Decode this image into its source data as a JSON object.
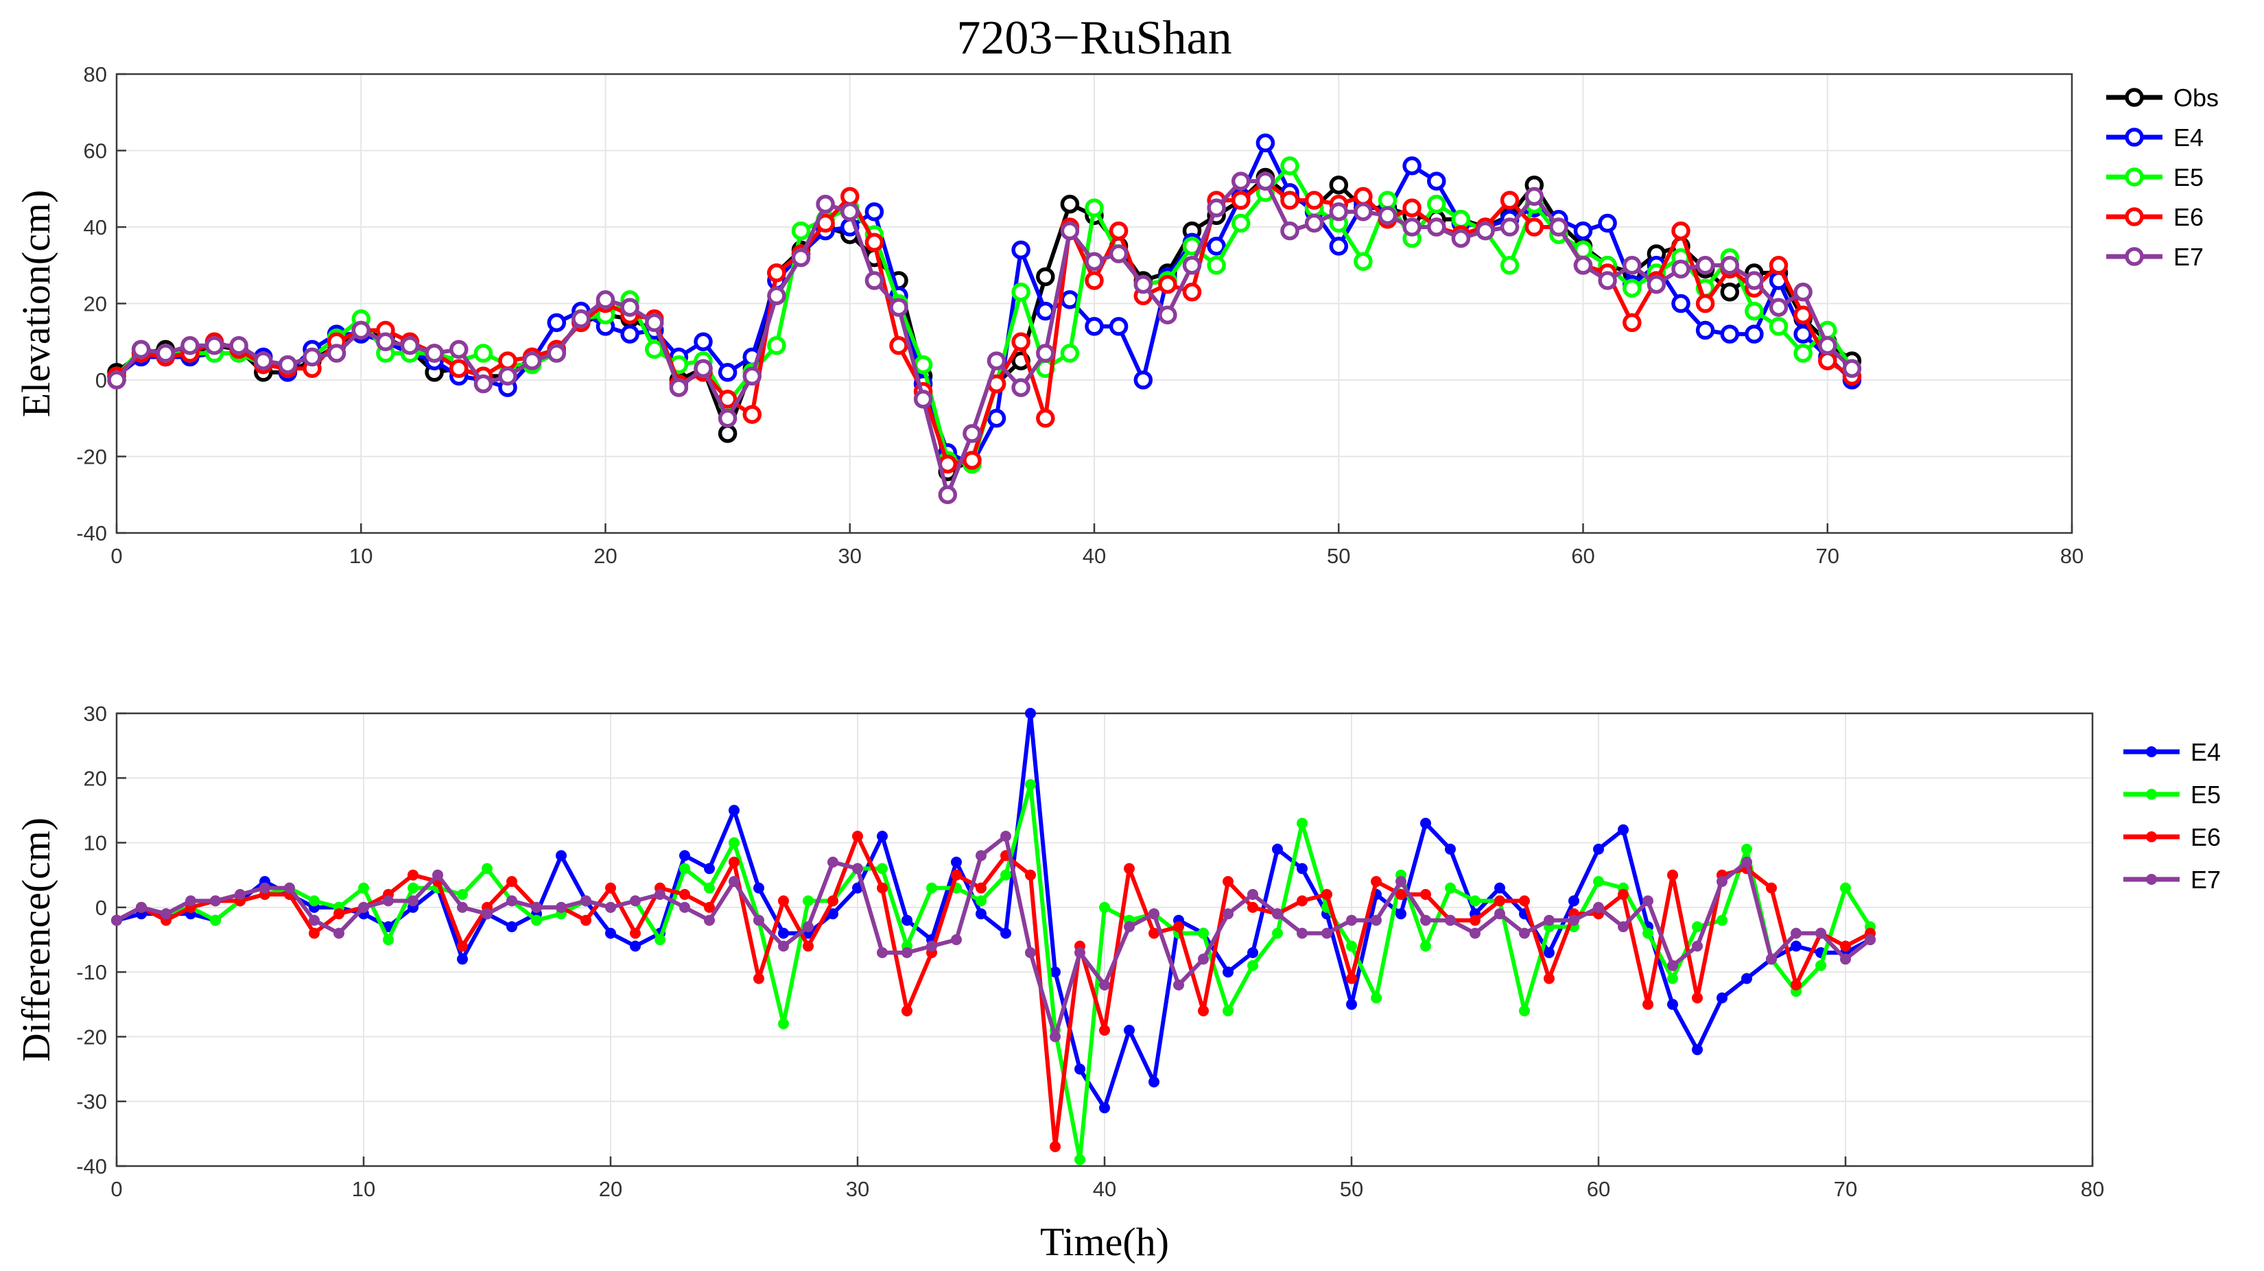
{
  "figure": {
    "title": "7203−RuShan",
    "xlabel": "Time(h)"
  },
  "chart_data": [
    {
      "type": "line",
      "ylabel": "Elevation(cm)",
      "xlim": [
        0,
        80
      ],
      "ylim": [
        -40,
        80
      ],
      "xticks": [
        0,
        10,
        20,
        30,
        40,
        50,
        60,
        70,
        80
      ],
      "yticks": [
        -40,
        -20,
        0,
        20,
        40,
        60,
        80
      ],
      "grid": true,
      "legend_position": "outside-right-top",
      "marker": "circle",
      "x": [
        0,
        1,
        2,
        3,
        4,
        5,
        6,
        7,
        8,
        9,
        10,
        11,
        12,
        13,
        14,
        15,
        16,
        17,
        18,
        19,
        20,
        21,
        22,
        23,
        24,
        25,
        26,
        27,
        28,
        29,
        30,
        31,
        32,
        33,
        34,
        35,
        36,
        37,
        38,
        39,
        40,
        41,
        42,
        43,
        44,
        45,
        46,
        47,
        48,
        49,
        50,
        51,
        52,
        53,
        54,
        55,
        56,
        57,
        58,
        59,
        60,
        61,
        62,
        63,
        64,
        65,
        66,
        67,
        68,
        69,
        70,
        71
      ],
      "series": [
        {
          "name": "Obs",
          "color": "#000000",
          "values": [
            2,
            7,
            8,
            7,
            9,
            8,
            2,
            2,
            5,
            9,
            13,
            11,
            8,
            2,
            3,
            1,
            1,
            6,
            8,
            15,
            17,
            16,
            13,
            0,
            3,
            -14,
            3,
            28,
            34,
            40,
            38,
            32,
            26,
            1,
            -24,
            -21,
            -1,
            5,
            27,
            46,
            43,
            35,
            26,
            28,
            39,
            43,
            47,
            53,
            48,
            45,
            51,
            45,
            45,
            43,
            42,
            42,
            40,
            43,
            51,
            41,
            35,
            30,
            28,
            33,
            35,
            29,
            23,
            28,
            28,
            16,
            10,
            5
          ]
        },
        {
          "name": "E4",
          "color": "#0000ff",
          "values": [
            1,
            6,
            6,
            6,
            7,
            7,
            6,
            2,
            8,
            12,
            12,
            10,
            7,
            5,
            1,
            0,
            -2,
            5,
            15,
            18,
            14,
            12,
            13,
            6,
            10,
            2,
            6,
            26,
            33,
            39,
            40,
            44,
            22,
            -1,
            -19,
            -22,
            -10,
            34,
            18,
            21,
            14,
            14,
            0,
            27,
            36,
            35,
            48,
            62,
            49,
            44,
            35,
            46,
            44,
            56,
            52,
            41,
            40,
            42,
            45,
            42,
            39,
            41,
            25,
            30,
            20,
            13,
            12,
            12,
            26,
            12,
            6,
            0
          ]
        },
        {
          "name": "E5",
          "color": "#00ff00",
          "values": [
            1,
            8,
            7,
            7,
            7,
            7,
            4,
            4,
            6,
            11,
            16,
            7,
            7,
            7,
            5,
            7,
            4,
            4,
            7,
            16,
            17,
            21,
            8,
            4,
            5,
            -6,
            2,
            9,
            39,
            42,
            45,
            38,
            20,
            4,
            -21,
            -22,
            -1,
            23,
            3,
            7,
            45,
            33,
            25,
            26,
            35,
            30,
            41,
            49,
            56,
            45,
            41,
            31,
            47,
            37,
            46,
            42,
            39,
            30,
            46,
            38,
            34,
            30,
            24,
            28,
            32,
            24,
            32,
            18,
            14,
            7,
            13,
            3
          ]
        },
        {
          "name": "E6",
          "color": "#ff0000",
          "values": [
            1,
            7,
            6,
            7,
            10,
            8,
            4,
            3,
            3,
            10,
            13,
            13,
            10,
            7,
            3,
            1,
            5,
            6,
            8,
            15,
            20,
            17,
            16,
            -1,
            2,
            -5,
            -9,
            28,
            33,
            41,
            48,
            36,
            9,
            -3,
            -22,
            -21,
            -1,
            10,
            -10,
            40,
            26,
            39,
            22,
            25,
            23,
            47,
            47,
            52,
            47,
            47,
            46,
            48,
            42,
            45,
            40,
            38,
            40,
            47,
            40,
            40,
            30,
            28,
            15,
            26,
            39,
            20,
            29,
            24,
            30,
            17,
            5,
            1
          ]
        },
        {
          "name": "E7",
          "color": "#8c3c9c",
          "values": [
            0,
            8,
            7,
            9,
            9,
            9,
            5,
            4,
            6,
            7,
            13,
            10,
            9,
            7,
            8,
            -1,
            1,
            5,
            7,
            16,
            21,
            19,
            15,
            -2,
            3,
            -10,
            1,
            22,
            32,
            46,
            44,
            26,
            19,
            -5,
            -30,
            -14,
            5,
            -2,
            7,
            39,
            31,
            33,
            25,
            17,
            30,
            45,
            52,
            52,
            39,
            41,
            44,
            44,
            43,
            40,
            40,
            37,
            39,
            40,
            48,
            40,
            30,
            26,
            30,
            25,
            29,
            30,
            30,
            26,
            19,
            23,
            9,
            3
          ]
        }
      ]
    },
    {
      "type": "line",
      "ylabel": "Difference(cm)",
      "xlim": [
        0,
        80
      ],
      "ylim": [
        -40,
        30
      ],
      "xticks": [
        0,
        10,
        20,
        30,
        40,
        50,
        60,
        70,
        80
      ],
      "yticks": [
        -40,
        -30,
        -20,
        -10,
        0,
        10,
        20,
        30
      ],
      "grid": true,
      "legend_position": "outside-right-top",
      "marker": "dot",
      "x": [
        0,
        1,
        2,
        3,
        4,
        5,
        6,
        7,
        8,
        9,
        10,
        11,
        12,
        13,
        14,
        15,
        16,
        17,
        18,
        19,
        20,
        21,
        22,
        23,
        24,
        25,
        26,
        27,
        28,
        29,
        30,
        31,
        32,
        33,
        34,
        35,
        36,
        37,
        38,
        39,
        40,
        41,
        42,
        43,
        44,
        45,
        46,
        47,
        48,
        49,
        50,
        51,
        52,
        53,
        54,
        55,
        56,
        57,
        58,
        59,
        60,
        61,
        62,
        63,
        64,
        65,
        66,
        67,
        68,
        69,
        70,
        71
      ],
      "series": [
        {
          "name": "E4",
          "color": "#0000ff",
          "values": [
            -2,
            -1,
            -1,
            -1,
            -2,
            1,
            4,
            2,
            0,
            0,
            -1,
            -3,
            0,
            3,
            -8,
            -1,
            -3,
            -1,
            8,
            1,
            -4,
            -6,
            -4,
            8,
            6,
            15,
            3,
            -4,
            -4,
            -1,
            3,
            11,
            -2,
            -5,
            7,
            -1,
            -4,
            30,
            -10,
            -25,
            -31,
            -19,
            -27,
            -2,
            -4,
            -10,
            -7,
            9,
            6,
            -1,
            -15,
            2,
            -1,
            13,
            9,
            -1,
            3,
            -1,
            -7,
            1,
            9,
            12,
            -3,
            -15,
            -22,
            -14,
            -11,
            -8,
            -6,
            -7,
            -7,
            -5
          ]
        },
        {
          "name": "E5",
          "color": "#00ff00",
          "values": [
            -2,
            0,
            -1,
            0,
            -2,
            1,
            2,
            3,
            1,
            0,
            3,
            -5,
            3,
            3,
            2,
            6,
            1,
            -2,
            -1,
            1,
            0,
            1,
            -5,
            6,
            3,
            10,
            -2,
            -18,
            1,
            1,
            6,
            6,
            -6,
            3,
            3,
            1,
            5,
            19,
            -19,
            -39,
            0,
            -2,
            -1,
            -4,
            -4,
            -16,
            -9,
            -4,
            13,
            0,
            -6,
            -14,
            5,
            -6,
            3,
            1,
            1,
            -16,
            -3,
            -3,
            4,
            3,
            -4,
            -11,
            -3,
            -2,
            9,
            -8,
            -13,
            -9,
            3,
            -3
          ]
        },
        {
          "name": "E6",
          "color": "#ff0000",
          "values": [
            -2,
            0,
            -2,
            0,
            1,
            1,
            2,
            2,
            -4,
            -1,
            0,
            2,
            5,
            4,
            -6,
            0,
            4,
            0,
            0,
            -2,
            3,
            -4,
            3,
            2,
            0,
            7,
            -11,
            1,
            -6,
            1,
            11,
            3,
            -16,
            -7,
            5,
            3,
            8,
            5,
            -37,
            -6,
            -19,
            6,
            -4,
            -3,
            -16,
            4,
            0,
            -1,
            1,
            2,
            -11,
            4,
            2,
            2,
            -2,
            -2,
            1,
            1,
            -11,
            -1,
            -1,
            2,
            -15,
            5,
            -14,
            5,
            6,
            3,
            -12,
            -4,
            -6,
            -4
          ]
        },
        {
          "name": "E7",
          "color": "#8c3c9c",
          "values": [
            -2,
            0,
            -1,
            1,
            1,
            2,
            3,
            3,
            -2,
            -4,
            0,
            1,
            1,
            5,
            0,
            -1,
            1,
            0,
            0,
            1,
            0,
            1,
            2,
            0,
            -2,
            4,
            -2,
            -6,
            -3,
            7,
            6,
            -7,
            -7,
            -6,
            -5,
            8,
            11,
            -7,
            -20,
            -7,
            -12,
            -3,
            -1,
            -12,
            -8,
            -1,
            2,
            -1,
            -4,
            -4,
            -2,
            -2,
            4,
            -2,
            -2,
            -4,
            -1,
            -4,
            -2,
            -2,
            0,
            -3,
            1,
            -9,
            -6,
            4,
            7,
            -8,
            -4,
            -4,
            -8,
            -5
          ]
        }
      ]
    }
  ]
}
